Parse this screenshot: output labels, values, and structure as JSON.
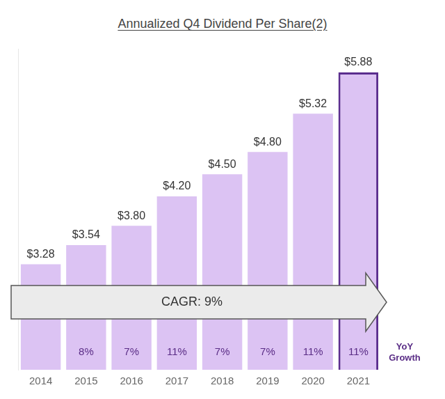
{
  "chart_data": {
    "type": "bar",
    "title": "Annualized Q4 Dividend Per Share(2)",
    "categories": [
      "2014",
      "2015",
      "2016",
      "2017",
      "2018",
      "2019",
      "2020",
      "2021"
    ],
    "values": [
      3.28,
      3.54,
      3.8,
      4.2,
      4.5,
      4.8,
      5.32,
      5.88
    ],
    "value_labels": [
      "$3.28",
      "$3.54",
      "$3.80",
      "$4.20",
      "$4.50",
      "$4.80",
      "$5.32",
      "$5.88"
    ],
    "data_labels": true,
    "color": "#dcc3f3",
    "ylim": [
      1.85,
      6.2
    ],
    "yticks": [],
    "tick_labels": "x",
    "grid": false,
    "annotation": "CAGR: 9%",
    "yoy_growth": [
      null,
      8,
      7,
      11,
      7,
      7,
      11,
      11
    ],
    "yoy_growth_labels": [
      null,
      "8%",
      "7%",
      "11%",
      "7%",
      "7%",
      "11%",
      "11%"
    ],
    "yoy_growth_title": "YoY Growth"
  }
}
